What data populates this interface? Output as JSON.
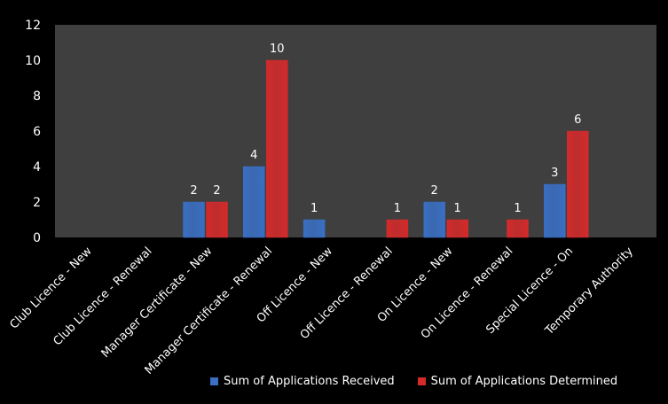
{
  "chart_data": {
    "type": "bar",
    "title": "",
    "xlabel": "",
    "ylabel": "",
    "ylim": [
      0,
      12
    ],
    "yticks": [
      0,
      2,
      4,
      6,
      8,
      10,
      12
    ],
    "grid": false,
    "legend_position": "bottom",
    "categories": [
      "Club Licence - New",
      "Club Licence - Renewal",
      "Manager Certificate - New",
      "Manager Certificate - Renewal",
      "Off Licence - New",
      "Off Licence - Renewal",
      "On Licence - New",
      "On Licence - Renewal",
      "Special Licence - On",
      "Temporary Authority"
    ],
    "series": [
      {
        "name": "Sum of Applications Received",
        "color": "#3a6fc4",
        "values": [
          null,
          null,
          2,
          4,
          1,
          null,
          2,
          null,
          3,
          null
        ]
      },
      {
        "name": "Sum of Applications Determined",
        "color": "#d42a2a",
        "values": [
          null,
          null,
          2,
          10,
          null,
          1,
          1,
          1,
          6,
          null
        ]
      }
    ],
    "colors": {
      "background": "#000000",
      "plot_area": "#3f3f3f",
      "text": "#ffffff"
    }
  }
}
